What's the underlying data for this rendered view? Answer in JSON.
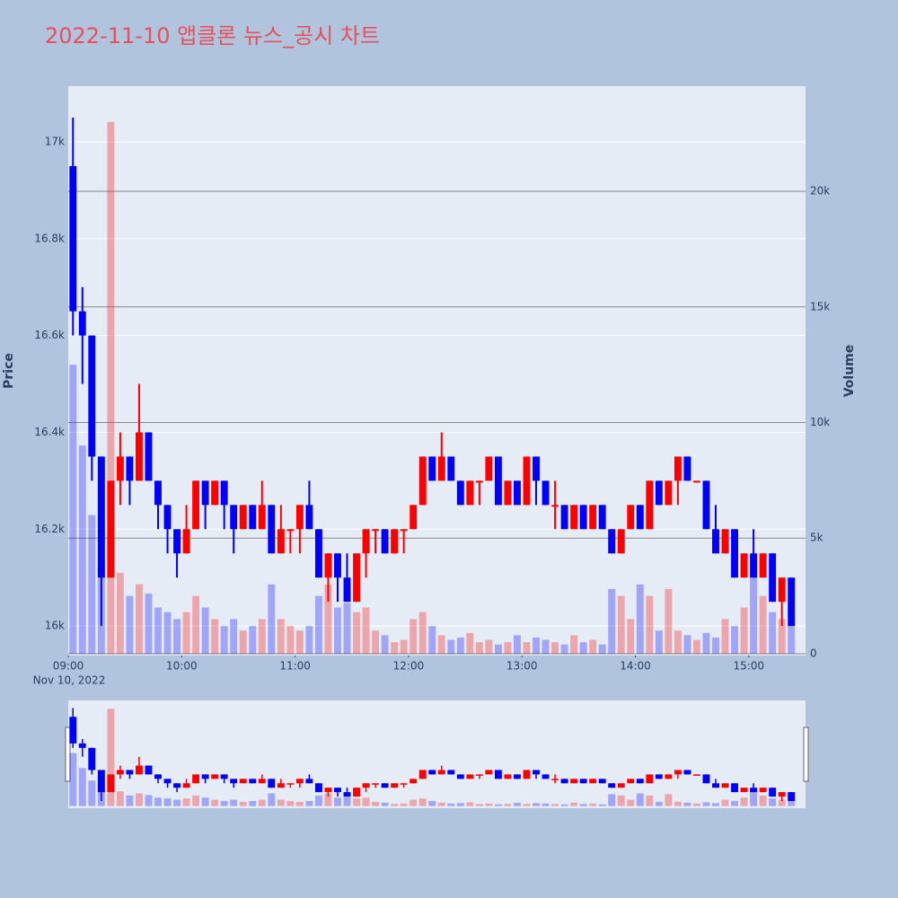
{
  "chart_data": {
    "type": "candlestick",
    "title": "2022-11-10 앱클론 뉴스_공시 차트",
    "y_label": "Price",
    "y2_label": "Volume",
    "x_date_label": "Nov 10, 2022",
    "increasing_color": "#ff0000",
    "decreasing_color": "#0000ff",
    "x": [
      "09:00",
      "09:05",
      "09:10",
      "09:15",
      "09:20",
      "09:25",
      "09:30",
      "09:35",
      "09:40",
      "09:45",
      "09:50",
      "09:55",
      "10:00",
      "10:05",
      "10:10",
      "10:15",
      "10:20",
      "10:25",
      "10:30",
      "10:35",
      "10:40",
      "10:45",
      "10:50",
      "10:55",
      "11:00",
      "11:05",
      "11:10",
      "11:15",
      "11:20",
      "11:25",
      "11:30",
      "11:35",
      "11:40",
      "11:45",
      "11:50",
      "11:55",
      "12:00",
      "12:05",
      "12:10",
      "12:15",
      "12:20",
      "12:25",
      "12:30",
      "12:35",
      "12:40",
      "12:45",
      "12:50",
      "12:55",
      "13:00",
      "13:05",
      "13:10",
      "13:15",
      "13:20",
      "13:25",
      "13:30",
      "13:35",
      "13:40",
      "13:45",
      "13:50",
      "13:55",
      "14:00",
      "14:05",
      "14:10",
      "14:15",
      "14:20",
      "14:25",
      "14:30",
      "14:35",
      "14:40",
      "14:45",
      "14:50",
      "14:55",
      "15:00",
      "15:05",
      "15:10",
      "15:15",
      "15:20"
    ],
    "open": [
      16950,
      16650,
      16600,
      16350,
      16100,
      16300,
      16350,
      16300,
      16400,
      16300,
      16250,
      16200,
      16150,
      16200,
      16300,
      16250,
      16300,
      16250,
      16200,
      16250,
      16200,
      16250,
      16150,
      16200,
      16200,
      16250,
      16200,
      16100,
      16150,
      16100,
      16050,
      16150,
      16200,
      16200,
      16150,
      16200,
      16200,
      16250,
      16350,
      16300,
      16350,
      16300,
      16250,
      16300,
      16300,
      16350,
      16250,
      16300,
      16250,
      16350,
      16300,
      16250,
      16250,
      16200,
      16250,
      16200,
      16250,
      16200,
      16150,
      16200,
      16250,
      16200,
      16300,
      16250,
      16300,
      16350,
      16300,
      16300,
      16200,
      16150,
      16200,
      16100,
      16150,
      16100,
      16150,
      16050,
      16100
    ],
    "high": [
      17050,
      16700,
      16600,
      16350,
      16300,
      16400,
      16350,
      16500,
      16400,
      16300,
      16250,
      16200,
      16250,
      16300,
      16300,
      16300,
      16300,
      16250,
      16250,
      16250,
      16300,
      16250,
      16250,
      16200,
      16250,
      16300,
      16200,
      16150,
      16150,
      16150,
      16150,
      16200,
      16200,
      16200,
      16200,
      16200,
      16250,
      16350,
      16350,
      16400,
      16350,
      16300,
      16300,
      16300,
      16350,
      16350,
      16300,
      16300,
      16350,
      16350,
      16300,
      16300,
      16250,
      16250,
      16250,
      16250,
      16250,
      16200,
      16200,
      16250,
      16250,
      16300,
      16300,
      16300,
      16350,
      16350,
      16300,
      16300,
      16250,
      16200,
      16200,
      16150,
      16200,
      16150,
      16150,
      16100,
      16100
    ],
    "low": [
      16600,
      16500,
      16300,
      16000,
      16100,
      16250,
      16250,
      16300,
      16300,
      16200,
      16150,
      16100,
      16150,
      16200,
      16200,
      16250,
      16200,
      16150,
      16200,
      16200,
      16200,
      16150,
      16150,
      16150,
      16150,
      16200,
      16100,
      16050,
      16050,
      16050,
      16050,
      16100,
      16150,
      16150,
      16150,
      16150,
      16200,
      16250,
      16300,
      16300,
      16300,
      16250,
      16250,
      16250,
      16300,
      16250,
      16250,
      16250,
      16250,
      16250,
      16250,
      16200,
      16200,
      16200,
      16200,
      16200,
      16200,
      16150,
      16150,
      16200,
      16200,
      16200,
      16250,
      16250,
      16250,
      16300,
      16300,
      16200,
      16150,
      16150,
      16100,
      16100,
      16100,
      16100,
      16050,
      16000,
      16000
    ],
    "close": [
      16650,
      16600,
      16350,
      16100,
      16300,
      16350,
      16300,
      16400,
      16300,
      16250,
      16200,
      16150,
      16200,
      16300,
      16250,
      16300,
      16250,
      16200,
      16250,
      16200,
      16250,
      16150,
      16200,
      16200,
      16250,
      16200,
      16100,
      16150,
      16100,
      16050,
      16150,
      16200,
      16200,
      16150,
      16200,
      16200,
      16250,
      16350,
      16300,
      16350,
      16300,
      16250,
      16300,
      16300,
      16350,
      16250,
      16300,
      16250,
      16350,
      16300,
      16250,
      16250,
      16200,
      16250,
      16200,
      16250,
      16200,
      16150,
      16200,
      16250,
      16200,
      16300,
      16250,
      16300,
      16350,
      16300,
      16300,
      16200,
      16150,
      16200,
      16100,
      16150,
      16100,
      16150,
      16050,
      16100,
      16000
    ],
    "volume": [
      12500,
      9000,
      6000,
      4000,
      23000,
      3500,
      2500,
      3000,
      2600,
      2000,
      1800,
      1500,
      1800,
      2500,
      2000,
      1500,
      1200,
      1500,
      1000,
      1200,
      1500,
      3000,
      1500,
      1200,
      1000,
      1200,
      2500,
      3000,
      2000,
      2200,
      1800,
      2000,
      1000,
      800,
      500,
      600,
      1500,
      1800,
      1200,
      800,
      600,
      700,
      900,
      500,
      600,
      400,
      500,
      800,
      500,
      700,
      600,
      500,
      400,
      800,
      500,
      600,
      400,
      2800,
      2500,
      1500,
      3000,
      2500,
      1000,
      2800,
      1000,
      800,
      600,
      900,
      700,
      1500,
      1200,
      2000,
      4000,
      2500,
      1800,
      1500,
      1200
    ],
    "xlim": [
      "09:00",
      "15:30"
    ],
    "xticks": [
      "09:00",
      "10:00",
      "11:00",
      "12:00",
      "13:00",
      "14:00",
      "15:00"
    ],
    "ylim": [
      15939,
      17115
    ],
    "yticks": [
      {
        "value": 16000,
        "label": "16k"
      },
      {
        "value": 16200,
        "label": "16.2k"
      },
      {
        "value": 16400,
        "label": "16.4k"
      },
      {
        "value": 16600,
        "label": "16.6k"
      },
      {
        "value": 16800,
        "label": "16.8k"
      },
      {
        "value": 17000,
        "label": "17k"
      }
    ],
    "y2lim": [
      -78,
      24544
    ],
    "y2ticks": [
      0,
      {
        "value": 5000,
        "label": "5k"
      },
      {
        "value": 10000,
        "label": "10k"
      },
      {
        "value": 15000,
        "label": "15k"
      },
      {
        "value": 20000,
        "label": "20k"
      }
    ],
    "grid": true
  }
}
